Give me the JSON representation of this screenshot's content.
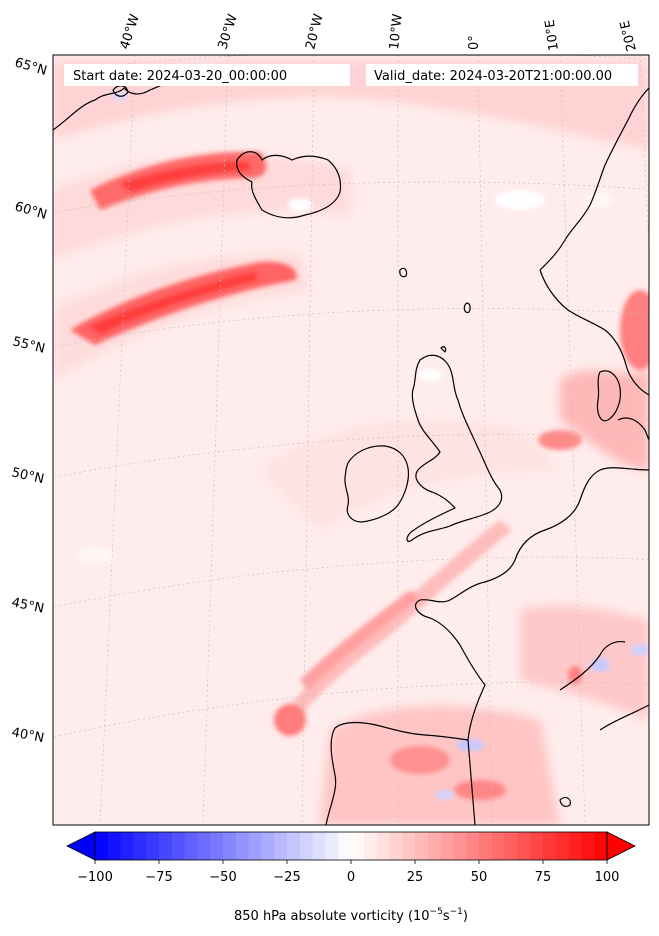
{
  "header": {
    "start_date": "Start date: 2024-03-20_00:00:00",
    "valid_date": "Valid_date: 2024-03-20T21:00:00.00"
  },
  "map": {
    "projection": "lambert-conformal",
    "field": "850 hPa absolute vorticity",
    "lon_labels": [
      "40°W",
      "30°W",
      "20°W",
      "10°W",
      "0°",
      "10°E",
      "20°E"
    ],
    "lat_labels": [
      "65°N",
      "60°N",
      "55°N",
      "50°N",
      "45°N",
      "40°N"
    ],
    "colors": {
      "positive": "#ff0000",
      "negative": "#0000ff",
      "neutral": "#ffffff",
      "coast": "#000000"
    }
  },
  "colorbar": {
    "label_main": "850 hPa absolute vorticity (10",
    "label_exp1": "−5",
    "label_mid": "s",
    "label_exp2": "−1",
    "label_end": ")",
    "ticks": [
      "−100",
      "−75",
      "−50",
      "−25",
      "0",
      "25",
      "50",
      "75",
      "100"
    ],
    "tick_values": [
      -100,
      -75,
      -50,
      -25,
      0,
      25,
      50,
      75,
      100
    ],
    "range": [
      -100,
      100
    ],
    "levels": 40,
    "extend": "both",
    "cmap": "bwr"
  }
}
